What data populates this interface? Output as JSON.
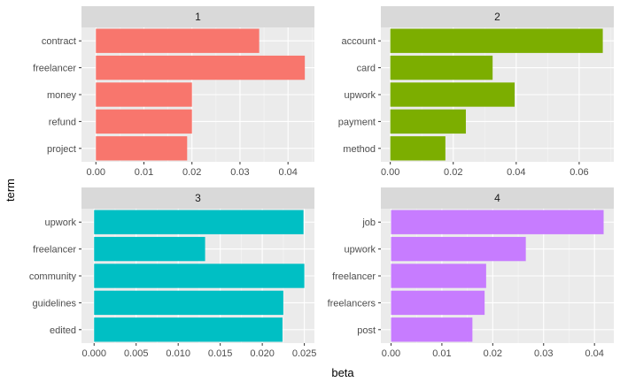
{
  "chart_data": {
    "type": "bar",
    "orientation": "horizontal",
    "xlabel": "beta",
    "ylabel": "term",
    "grid": true,
    "facets": [
      {
        "title": "1",
        "color": "#F8766D",
        "xlim": [
          -0.003,
          0.0455
        ],
        "xticks": [
          0,
          0.01,
          0.02,
          0.03,
          0.04
        ],
        "xtick_labels": [
          "0.00",
          "0.01",
          "0.02",
          "0.03",
          "0.04"
        ],
        "categories": [
          "contract",
          "freelancer",
          "money",
          "refund",
          "project"
        ],
        "values": [
          0.034,
          0.0435,
          0.02,
          0.02,
          0.019
        ]
      },
      {
        "title": "2",
        "color": "#7CAE00",
        "xlim": [
          -0.003,
          0.071
        ],
        "xticks": [
          0,
          0.02,
          0.04,
          0.06
        ],
        "xtick_labels": [
          "0.00",
          "0.02",
          "0.04",
          "0.06"
        ],
        "categories": [
          "account",
          "card",
          "upwork",
          "payment",
          "method"
        ],
        "values": [
          0.0675,
          0.0325,
          0.0395,
          0.024,
          0.0175
        ]
      },
      {
        "title": "3",
        "color": "#00BFC4",
        "xlim": [
          -0.0015,
          0.0262
        ],
        "xticks": [
          0,
          0.005,
          0.01,
          0.015,
          0.02,
          0.025
        ],
        "xtick_labels": [
          "0.000",
          "0.005",
          "0.010",
          "0.015",
          "0.020",
          "0.025"
        ],
        "categories": [
          "upwork",
          "freelancer",
          "community",
          "guidelines",
          "edited"
        ],
        "values": [
          0.0249,
          0.0132,
          0.025,
          0.0225,
          0.0224
        ]
      },
      {
        "title": "4",
        "color": "#C77CFF",
        "xlim": [
          -0.002,
          0.0438
        ],
        "xticks": [
          0,
          0.01,
          0.02,
          0.03,
          0.04
        ],
        "xtick_labels": [
          "0.00",
          "0.01",
          "0.02",
          "0.03",
          "0.04"
        ],
        "categories": [
          "job",
          "upwork",
          "freelancer",
          "freelancers",
          "post"
        ],
        "values": [
          0.0418,
          0.0265,
          0.0187,
          0.0184,
          0.016
        ]
      }
    ]
  }
}
